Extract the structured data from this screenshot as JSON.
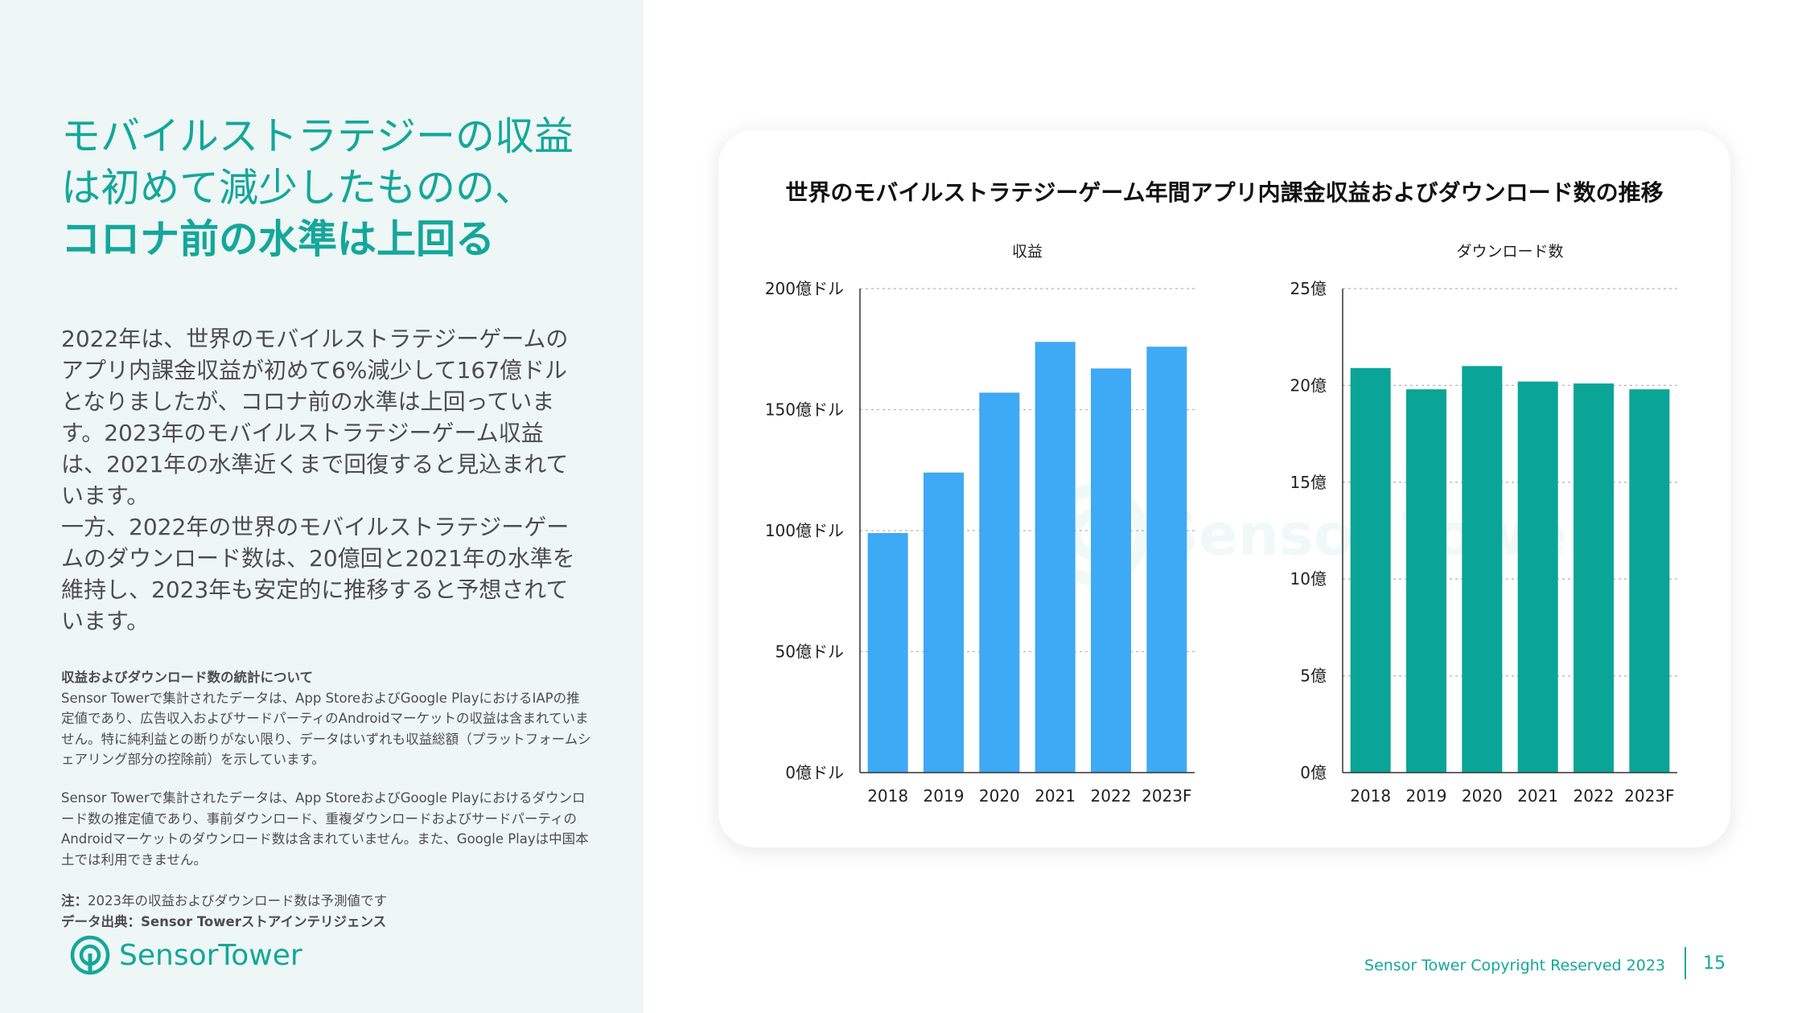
{
  "left": {
    "headline": {
      "line1": "モバイルストラテジーの収益",
      "line2": "は初めて減少したものの、",
      "line3": "コロナ前の水準は上回る"
    },
    "paragraph1": "2022年は、世界のモバイルストラテジーゲームのアプリ内課金収益が初めて6%減少して167億ドルとなりましたが、コロナ前の水準は上回っています。2023年のモバイルストラテジーゲーム収益は、2021年の水準近くまで回復すると見込まれています。",
    "paragraph2": "一方、2022年の世界のモバイルストラテジーゲームのダウンロード数は、20億回と2021年の水準を維持し、2023年も安定的に推移すると予想されています。",
    "notes_heading": "収益およびダウンロード数の統計について",
    "notes_text1": "Sensor Towerで集計されたデータは、App StoreおよびGoogle PlayにおけるIAPの推定値であり、広告収入およびサードパーティのAndroidマーケットの収益は含まれていません。特に純利益との断りがない限り、データはいずれも収益総額（プラットフォームシェアリング部分の控除前）を示しています。",
    "notes_text2": "Sensor Towerで集計されたデータは、App StoreおよびGoogle Playにおけるダウンロード数の推定値であり、事前ダウンロード、重複ダウンロードおよびサードパーティのAndroidマーケットのダウンロード数は含まれていません。また、Google Playは中国本土では利用できません。",
    "note_label": "注：",
    "note_text": "2023年の収益およびダウンロード数は予測値です",
    "source_label": "データ出典：",
    "source_text": "Sensor Towerストアインテリジェンス",
    "logo_word1": "Sensor",
    "logo_word2": "Tower"
  },
  "chart_title": "世界のモバイルストラテジーゲーム年間アプリ内課金収益およびダウンロード数の推移",
  "watermark": "Sensor Tower",
  "chart_data": [
    {
      "type": "bar",
      "title": "収益",
      "categories": [
        "2018",
        "2019",
        "2020",
        "2021",
        "2022",
        "2023F"
      ],
      "values": [
        99,
        124,
        157,
        178,
        167,
        176
      ],
      "ylim": [
        0,
        200
      ],
      "yticks": [
        0,
        50,
        100,
        150,
        200
      ],
      "ytick_labels": [
        "0億ドル",
        "50億ドル",
        "100億ドル",
        "150億ドル",
        "200億ドル"
      ],
      "xlabel": "",
      "ylabel": "",
      "grid": true,
      "color": "#3ea9f5"
    },
    {
      "type": "bar",
      "title": "ダウンロード数",
      "categories": [
        "2018",
        "2019",
        "2020",
        "2021",
        "2022",
        "2023F"
      ],
      "values": [
        20.9,
        19.8,
        21.0,
        20.2,
        20.1,
        19.8
      ],
      "ylim": [
        0,
        25
      ],
      "yticks": [
        0,
        5,
        10,
        15,
        20,
        25
      ],
      "ytick_labels": [
        "0億",
        "5億",
        "10億",
        "15億",
        "20億",
        "25億"
      ],
      "xlabel": "",
      "ylabel": "",
      "grid": true,
      "color": "#0aa597"
    }
  ],
  "footer": {
    "copyright": "Sensor Tower Copyright Reserved 2023",
    "page_number": "15"
  },
  "colors": {
    "accent": "#14a79a",
    "panel_bg": "#eef6f6",
    "revenue_bar": "#3ea9f5",
    "download_bar": "#0aa597"
  }
}
